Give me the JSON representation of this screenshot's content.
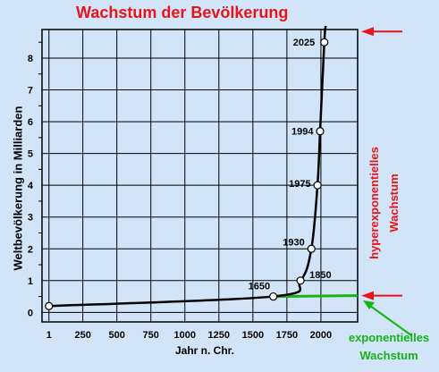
{
  "chart_data": {
    "type": "line",
    "title": "Wachstum der Bevölkerung",
    "xlabel": "Jahr n. Chr.",
    "ylabel": "Weltbevölkerung in Milliarden",
    "x_ticks": [
      "1",
      "250",
      "500",
      "750",
      "1000",
      "1250",
      "1500",
      "1750",
      "2000"
    ],
    "x_tick_values": [
      1,
      250,
      500,
      750,
      1000,
      1250,
      1500,
      1750,
      2000
    ],
    "y_ticks": [
      "0",
      "1",
      "2",
      "3",
      "4",
      "5",
      "6",
      "7",
      "8"
    ],
    "xlim": [
      -50,
      2270
    ],
    "ylim": [
      -0.3,
      8.9
    ],
    "grid": true,
    "series": [
      {
        "points": [
          {
            "x": 1,
            "y": 0.2
          },
          {
            "x": 1650,
            "y": 0.5
          },
          {
            "x": 1850,
            "y": 1.0
          },
          {
            "x": 1930,
            "y": 2.0
          },
          {
            "x": 1975,
            "y": 4.0
          },
          {
            "x": 1994,
            "y": 5.7
          },
          {
            "x": 2025,
            "y": 8.5
          }
        ]
      }
    ],
    "annotations": [
      {
        "text": "1650",
        "x": 1650,
        "y": 0.5
      },
      {
        "text": "1850",
        "x": 1850,
        "y": 1.0
      },
      {
        "text": "1930",
        "x": 1930,
        "y": 2.0
      },
      {
        "text": "1975",
        "x": 1975,
        "y": 4.0
      },
      {
        "text": "1994",
        "x": 1994,
        "y": 5.7
      },
      {
        "text": "2025",
        "x": 2025,
        "y": 8.5
      }
    ],
    "side_labels": {
      "hyper": [
        "hyperexponentielles",
        "Wachstum"
      ],
      "expo": [
        "exponentielles",
        "Wachstum"
      ]
    },
    "colors": {
      "background": "#d2e4f8",
      "title": "#e8141a",
      "curve": "#000000",
      "exponential_line": "#14b414",
      "arrow_red": "#e8141a",
      "arrow_green": "#14b414"
    }
  }
}
